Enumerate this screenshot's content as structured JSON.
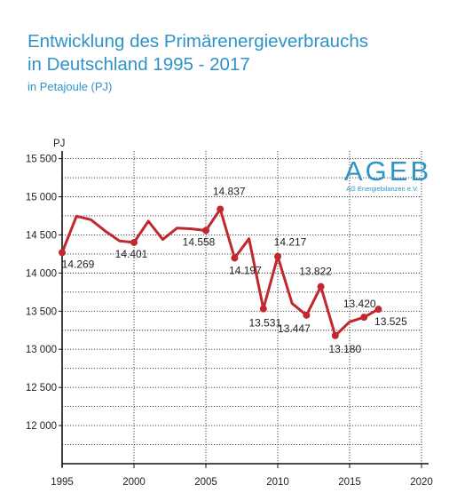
{
  "header": {
    "title_line1": "Entwicklung des Primärenergieverbrauchs",
    "title_line2": "in Deutschland 1995 - 2017",
    "subtitle": "in Petajoule (PJ)"
  },
  "logo": {
    "main": "AGEB",
    "sub": "AG Energiebilanzen e.V."
  },
  "colors": {
    "line": "#c0282e",
    "title": "#2f93c8"
  },
  "chart_data": {
    "type": "line",
    "title": "Entwicklung des Primärenergieverbrauchs in Deutschland 1995 - 2017",
    "subtitle": "in Petajoule (PJ)",
    "ylabel": "PJ",
    "xlabel": "",
    "xlim": [
      1995,
      2020
    ],
    "ylim": [
      11500,
      15600
    ],
    "x_ticks": [
      1995,
      2000,
      2005,
      2010,
      2015,
      2020
    ],
    "y_ticks": [
      12000,
      12500,
      13000,
      13500,
      14000,
      14500,
      15000,
      15500
    ],
    "y_tick_labels": [
      "12 000",
      "12 500",
      "13 000",
      "13 500",
      "14 000",
      "14 500",
      "15 000",
      "15 500"
    ],
    "grid": true,
    "series": [
      {
        "name": "",
        "x": [
          1995,
          1996,
          1997,
          1998,
          1999,
          2000,
          2001,
          2002,
          2003,
          2004,
          2005,
          2006,
          2007,
          2008,
          2009,
          2010,
          2011,
          2012,
          2013,
          2014,
          2015,
          2016,
          2017
        ],
        "values": [
          14269,
          14746,
          14700,
          14550,
          14420,
          14401,
          14680,
          14440,
          14590,
          14580,
          14558,
          14837,
          14197,
          14450,
          13531,
          14217,
          13600,
          13447,
          13822,
          13180,
          13360,
          13420,
          13525
        ]
      }
    ],
    "labeled_points": [
      {
        "year": 1995,
        "label": "14.269"
      },
      {
        "year": 2000,
        "label": "14.401"
      },
      {
        "year": 2005,
        "label": "14.558"
      },
      {
        "year": 2006,
        "label": "14.837"
      },
      {
        "year": 2007,
        "label": "14.197"
      },
      {
        "year": 2009,
        "label": "13.531"
      },
      {
        "year": 2010,
        "label": "14.217"
      },
      {
        "year": 2012,
        "label": "13.447"
      },
      {
        "year": 2013,
        "label": "13.822"
      },
      {
        "year": 2014,
        "label": "13.180"
      },
      {
        "year": 2016,
        "label": "13.420"
      },
      {
        "year": 2017,
        "label": "13.525"
      }
    ]
  }
}
